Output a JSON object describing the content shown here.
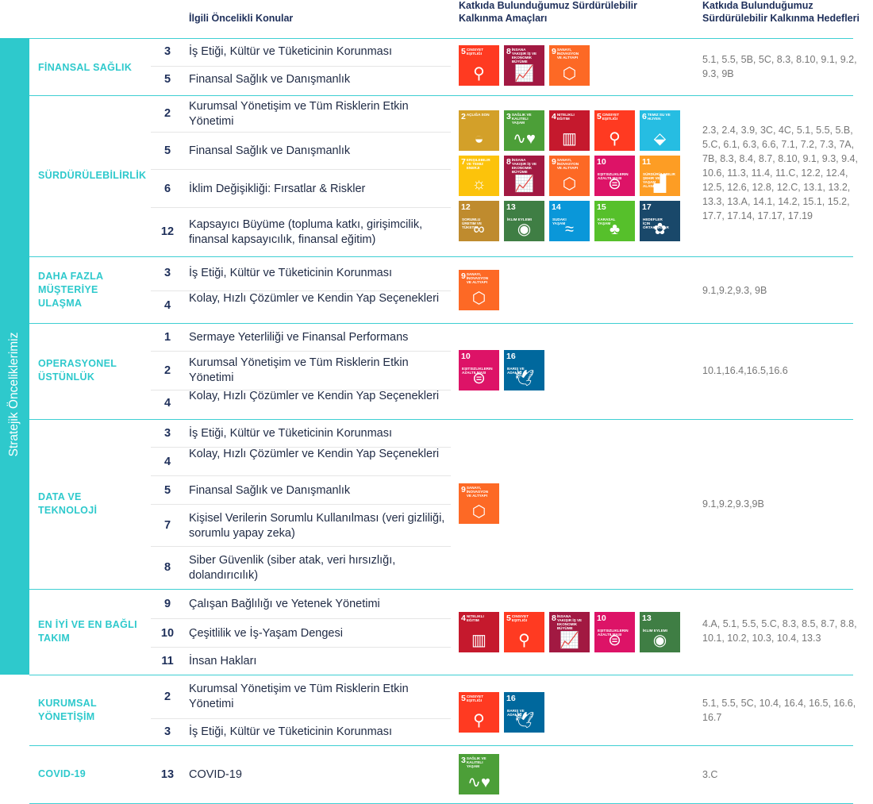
{
  "headers": {
    "topics": "İlgili Öncelikli Konular",
    "goals": "Katkıda Bulunduğumuz Sürdürülebilir Kalkınma Amaçları",
    "targets": "Katkıda Bulunduğumuz Sürdürülebilir Kalkınma Hedefleri"
  },
  "sidebar_label": "Stratejik Önceliklerimiz",
  "sdg_catalog": {
    "2": {
      "label": "Açlığa Son",
      "color": "#d3a029",
      "icon": "bowl-icon",
      "glyph": "◒"
    },
    "3": {
      "label": "Sağlık ve Kaliteli Yaşam",
      "color": "#4c9f38",
      "icon": "heartbeat-icon",
      "glyph": "∿♥"
    },
    "4": {
      "label": "Nitelikli Eğitim",
      "color": "#c5192d",
      "icon": "book-icon",
      "glyph": "▥"
    },
    "5": {
      "label": "Cinsiyet Eşitliği",
      "color": "#ff3a21",
      "icon": "gender-equality-icon",
      "glyph": "⚲"
    },
    "6": {
      "label": "Temiz Su ve Hijyen",
      "color": "#26bde2",
      "icon": "water-drop-icon",
      "glyph": "⬙"
    },
    "7": {
      "label": "Erişilebilir ve Temiz Enerji",
      "color": "#fcc30b",
      "icon": "sun-icon",
      "glyph": "☼"
    },
    "8": {
      "label": "İnsana Yakışır İş ve Ekonomik Büyüme",
      "color": "#a21942",
      "icon": "growth-chart-icon",
      "glyph": "📈"
    },
    "9": {
      "label": "Sanayi, İnovasyon ve Altyapı",
      "color": "#fd6925",
      "icon": "cubes-icon",
      "glyph": "⬡"
    },
    "10": {
      "label": "Eşitsizliklerin Azaltılması",
      "color": "#dd1367",
      "icon": "equal-circle-icon",
      "glyph": "⊜"
    },
    "11": {
      "label": "Sürdürülebilir Şehir ve Yaşam Alanları",
      "color": "#fd9d24",
      "icon": "city-icon",
      "glyph": "▟"
    },
    "12": {
      "label": "Sorumlu Üretim ve Tüketim",
      "color": "#bf8b2e",
      "icon": "infinity-icon",
      "glyph": "∞"
    },
    "13": {
      "label": "İklim Eylemi",
      "color": "#3f7e44",
      "icon": "eye-globe-icon",
      "glyph": "◉"
    },
    "14": {
      "label": "Sudaki Yaşam",
      "color": "#0a97d9",
      "icon": "fish-icon",
      "glyph": "≈"
    },
    "15": {
      "label": "Karasal Yaşam",
      "color": "#56c02b",
      "icon": "tree-icon",
      "glyph": "♣"
    },
    "16": {
      "label": "Barış ve Adalet",
      "color": "#00689d",
      "icon": "dove-icon",
      "glyph": "🕊"
    },
    "17": {
      "label": "Hedefler İçin Ortaklıklar",
      "color": "#19486a",
      "icon": "flower-ring-icon",
      "glyph": "✿"
    }
  },
  "sections": [
    {
      "title": "FİNANSAL SAĞLIK",
      "rows": [
        {
          "num": "3",
          "text": "İş Etiği, Kültür ve Tüketicinin Korunması"
        },
        {
          "num": "5",
          "text": "Finansal Sağlık ve Danışmanlık"
        }
      ],
      "sdgs": [
        "5",
        "8",
        "9"
      ],
      "targets": "5.1, 5.5, 5B, 5C, 8.3, 8.10, 9.1, 9.2, 9.3, 9B"
    },
    {
      "title": "SÜRDÜRÜLEBİLİRLİK",
      "rows": [
        {
          "num": "2",
          "text": "Kurumsal Yönetişim ve Tüm Risklerin Etkin Yönetimi"
        },
        {
          "num": "5",
          "text": "Finansal Sağlık ve Danışmanlık"
        },
        {
          "num": "6",
          "text": "İklim Değişikliği: Fırsatlar & Riskler"
        },
        {
          "num": "12",
          "text": "Kapsayıcı Büyüme (topluma katkı, girişimcilik, finansal kapsayıcılık, finansal eğitim)"
        }
      ],
      "sdgs": [
        "2",
        "3",
        "4",
        "5",
        "6",
        "7",
        "8",
        "9",
        "10",
        "11",
        "12",
        "13",
        "14",
        "15",
        "17"
      ],
      "targets": "2.3, 2.4, 3.9, 3C, 4C, 5.1, 5.5, 5.B, 5.C, 6.1, 6.3, 6.6, 7.1, 7.2, 7.3, 7A, 7B, 8.3, 8.4, 8.7, 8.10, 9.1, 9.3, 9.4, 10.6, 11.3, 11.4, 11.C, 12.2, 12.4, 12.5, 12.6, 12.8, 12.C, 13.1, 13.2, 13.3, 13.A, 14.1, 14.2, 15.1, 15.2, 17.7, 17.14, 17.17, 17.19"
    },
    {
      "title": "DAHA FAZLA MÜŞTERİYE ULAŞMA",
      "rows": [
        {
          "num": "3",
          "text": "İş Etiği, Kültür ve Tüketicinin Korunması"
        },
        {
          "num": "4",
          "text": "Kolay, Hızlı Çözümler ve Kendin Yap Seçenekleri"
        }
      ],
      "sdgs": [
        "9"
      ],
      "targets": "9.1,9.2,9.3, 9B"
    },
    {
      "title": "OPERASYONEL ÜSTÜNLÜK",
      "rows": [
        {
          "num": "1",
          "text": "Sermaye Yeterliliği ve Finansal Performans"
        },
        {
          "num": "2",
          "text": "Kurumsal Yönetişim ve Tüm Risklerin Etkin Yönetimi"
        },
        {
          "num": "4",
          "text": "Kolay, Hızlı Çözümler ve Kendin Yap Seçenekleri"
        }
      ],
      "sdgs": [
        "10",
        "16"
      ],
      "targets": "10.1,16.4,16.5,16.6"
    },
    {
      "title": "DATA VE TEKNOLOJİ",
      "rows": [
        {
          "num": "3",
          "text": "İş Etiği, Kültür ve Tüketicinin Korunması"
        },
        {
          "num": "4",
          "text": "Kolay, Hızlı Çözümler ve Kendin Yap Seçenekleri"
        },
        {
          "num": "5",
          "text": "Finansal Sağlık ve Danışmanlık"
        },
        {
          "num": "7",
          "text": "Kişisel Verilerin Sorumlu Kullanılması (veri gizliliği, sorumlu yapay zeka)"
        },
        {
          "num": "8",
          "text": "Siber Güvenlik (siber atak, veri hırsızlığı, dolandırıcılık)"
        }
      ],
      "sdgs": [
        "9"
      ],
      "targets": "9.1,9.2,9.3,9B"
    },
    {
      "title": "EN İYİ VE EN BAĞLI TAKIM",
      "rows": [
        {
          "num": "9",
          "text": "Çalışan Bağlılığı ve Yetenek Yönetimi"
        },
        {
          "num": "10",
          "text": "Çeşitlilik ve İş-Yaşam Dengesi"
        },
        {
          "num": "11",
          "text": "İnsan Hakları"
        }
      ],
      "sdgs": [
        "4",
        "5",
        "8",
        "10",
        "13"
      ],
      "targets": "4.A, 5.1, 5.5, 5.C, 8.3, 8.5, 8.7, 8.8, 10.1, 10.2, 10.3, 10.4, 13.3"
    },
    {
      "title": "KURUMSAL YÖNETİŞİM",
      "rows": [
        {
          "num": "2",
          "text": "Kurumsal Yönetişim ve Tüm Risklerin Etkin Yönetimi"
        },
        {
          "num": "3",
          "text": "İş Etiği, Kültür ve Tüketicinin Korunması"
        }
      ],
      "sdgs": [
        "5",
        "16"
      ],
      "targets": "5.1, 5.5, 5C, 10.4, 16.4, 16.5, 16.6, 16.7"
    },
    {
      "title": "COVID-19",
      "rows": [
        {
          "num": "13",
          "text": "COVID-19"
        }
      ],
      "sdgs": [
        "3"
      ],
      "targets": "3.C"
    }
  ]
}
